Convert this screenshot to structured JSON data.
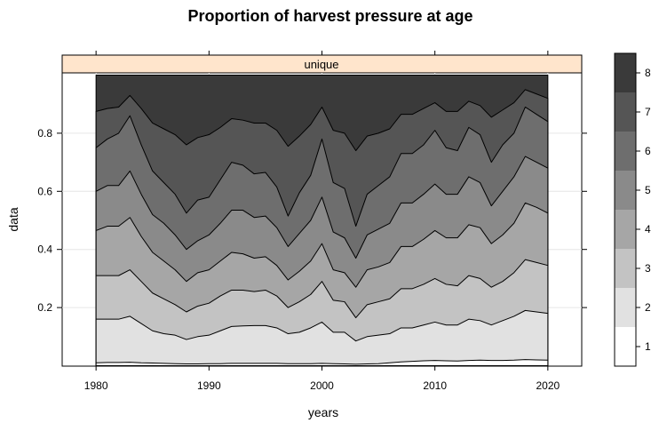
{
  "chart_data": {
    "type": "area",
    "title": "Proportion of harvest pressure at age",
    "panel_label": "unique",
    "xlabel": "years",
    "ylabel": "data",
    "x_ticks": [
      "1980",
      "1990",
      "2000",
      "2010",
      "2020"
    ],
    "y_ticks": [
      "0.2",
      "0.4",
      "0.6",
      "0.8"
    ],
    "xlim": [
      1977,
      2023
    ],
    "ylim": [
      0,
      1
    ],
    "stacked": true,
    "grid": true,
    "legend": {
      "position": "right",
      "type": "colorkey",
      "labels": [
        "1",
        "2",
        "3",
        "4",
        "5",
        "6",
        "7",
        "8"
      ],
      "colors": [
        "#ffffff",
        "#e1e1e1",
        "#c3c3c3",
        "#a6a6a6",
        "#8a8a8a",
        "#6e6e6e",
        "#555555",
        "#3a3a3a"
      ]
    },
    "x": [
      1980,
      1981,
      1982,
      1983,
      1984,
      1985,
      1986,
      1987,
      1988,
      1989,
      1990,
      1991,
      1992,
      1993,
      1994,
      1995,
      1996,
      1997,
      1998,
      1999,
      2000,
      2001,
      2002,
      2003,
      2004,
      2005,
      2006,
      2007,
      2008,
      2009,
      2010,
      2011,
      2012,
      2013,
      2014,
      2015,
      2016,
      2017,
      2018,
      2019,
      2020
    ],
    "cumulative_boundaries": [
      {
        "label": "1",
        "values": [
          0.01,
          0.011,
          0.011,
          0.012,
          0.01,
          0.009,
          0.008,
          0.007,
          0.006,
          0.006,
          0.007,
          0.007,
          0.008,
          0.008,
          0.008,
          0.008,
          0.008,
          0.007,
          0.007,
          0.007,
          0.008,
          0.007,
          0.006,
          0.005,
          0.006,
          0.007,
          0.01,
          0.013,
          0.015,
          0.017,
          0.018,
          0.017,
          0.016,
          0.018,
          0.019,
          0.018,
          0.018,
          0.019,
          0.021,
          0.02,
          0.019
        ]
      },
      {
        "label": "2",
        "values": [
          0.16,
          0.16,
          0.16,
          0.17,
          0.145,
          0.12,
          0.11,
          0.105,
          0.09,
          0.1,
          0.105,
          0.12,
          0.135,
          0.137,
          0.138,
          0.138,
          0.13,
          0.11,
          0.115,
          0.13,
          0.15,
          0.115,
          0.115,
          0.085,
          0.1,
          0.105,
          0.11,
          0.13,
          0.13,
          0.14,
          0.15,
          0.14,
          0.14,
          0.16,
          0.155,
          0.14,
          0.155,
          0.17,
          0.19,
          0.185,
          0.18
        ]
      },
      {
        "label": "3",
        "values": [
          0.31,
          0.31,
          0.31,
          0.33,
          0.29,
          0.25,
          0.23,
          0.21,
          0.185,
          0.205,
          0.215,
          0.24,
          0.26,
          0.26,
          0.255,
          0.26,
          0.24,
          0.2,
          0.22,
          0.245,
          0.29,
          0.225,
          0.22,
          0.165,
          0.21,
          0.22,
          0.23,
          0.265,
          0.265,
          0.28,
          0.3,
          0.28,
          0.275,
          0.31,
          0.3,
          0.27,
          0.29,
          0.32,
          0.365,
          0.355,
          0.345
        ]
      },
      {
        "label": "4",
        "values": [
          0.465,
          0.48,
          0.48,
          0.51,
          0.445,
          0.39,
          0.36,
          0.33,
          0.29,
          0.32,
          0.33,
          0.36,
          0.39,
          0.385,
          0.37,
          0.375,
          0.345,
          0.295,
          0.325,
          0.36,
          0.42,
          0.33,
          0.32,
          0.27,
          0.33,
          0.34,
          0.355,
          0.41,
          0.41,
          0.435,
          0.465,
          0.44,
          0.44,
          0.485,
          0.475,
          0.42,
          0.45,
          0.49,
          0.56,
          0.545,
          0.525
        ]
      },
      {
        "label": "5",
        "values": [
          0.6,
          0.62,
          0.62,
          0.67,
          0.59,
          0.52,
          0.49,
          0.45,
          0.4,
          0.43,
          0.45,
          0.49,
          0.535,
          0.535,
          0.51,
          0.515,
          0.475,
          0.41,
          0.455,
          0.5,
          0.58,
          0.46,
          0.44,
          0.37,
          0.45,
          0.47,
          0.49,
          0.56,
          0.56,
          0.59,
          0.625,
          0.59,
          0.59,
          0.65,
          0.63,
          0.55,
          0.6,
          0.65,
          0.72,
          0.7,
          0.68
        ]
      },
      {
        "label": "6",
        "values": [
          0.75,
          0.78,
          0.8,
          0.86,
          0.76,
          0.67,
          0.63,
          0.59,
          0.525,
          0.57,
          0.58,
          0.64,
          0.7,
          0.69,
          0.66,
          0.665,
          0.615,
          0.515,
          0.595,
          0.655,
          0.78,
          0.63,
          0.61,
          0.48,
          0.59,
          0.62,
          0.65,
          0.73,
          0.73,
          0.76,
          0.81,
          0.75,
          0.74,
          0.82,
          0.795,
          0.7,
          0.76,
          0.8,
          0.89,
          0.865,
          0.84
        ]
      },
      {
        "label": "7",
        "values": [
          0.875,
          0.885,
          0.89,
          0.93,
          0.885,
          0.835,
          0.815,
          0.795,
          0.76,
          0.785,
          0.795,
          0.82,
          0.85,
          0.845,
          0.835,
          0.835,
          0.81,
          0.755,
          0.79,
          0.83,
          0.89,
          0.81,
          0.8,
          0.74,
          0.79,
          0.8,
          0.815,
          0.865,
          0.865,
          0.885,
          0.905,
          0.875,
          0.875,
          0.91,
          0.895,
          0.855,
          0.88,
          0.905,
          0.95,
          0.935,
          0.92
        ]
      },
      {
        "label": "8",
        "values": [
          1,
          1,
          1,
          1,
          1,
          1,
          1,
          1,
          1,
          1,
          1,
          1,
          1,
          1,
          1,
          1,
          1,
          1,
          1,
          1,
          1,
          1,
          1,
          1,
          1,
          1,
          1,
          1,
          1,
          1,
          1,
          1,
          1,
          1,
          1,
          1,
          1,
          1,
          1,
          1,
          1
        ]
      }
    ]
  }
}
